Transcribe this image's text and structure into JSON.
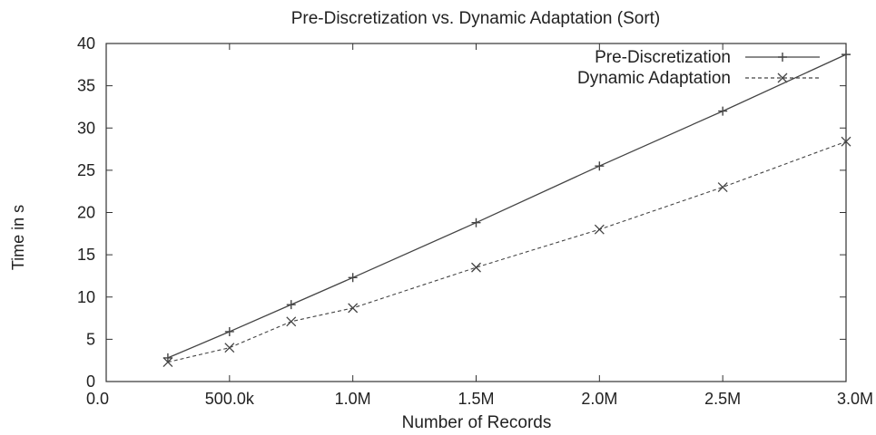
{
  "chart_data": {
    "type": "line",
    "title": "Pre-Discretization vs. Dynamic Adaptation (Sort)",
    "xlabel": "Number of Records",
    "ylabel": "Time in s",
    "xlim": [
      0,
      3000000
    ],
    "ylim": [
      0,
      40
    ],
    "x_ticks": [
      {
        "value": 0,
        "label": "0.0"
      },
      {
        "value": 500000,
        "label": "500.0k"
      },
      {
        "value": 1000000,
        "label": "1.0M"
      },
      {
        "value": 1500000,
        "label": "1.5M"
      },
      {
        "value": 2000000,
        "label": "2.0M"
      },
      {
        "value": 2500000,
        "label": "2.5M"
      },
      {
        "value": 3000000,
        "label": "3.0M"
      }
    ],
    "y_ticks": [
      {
        "value": 0,
        "label": "0"
      },
      {
        "value": 5,
        "label": "5"
      },
      {
        "value": 10,
        "label": "10"
      },
      {
        "value": 15,
        "label": "15"
      },
      {
        "value": 20,
        "label": "20"
      },
      {
        "value": 25,
        "label": "25"
      },
      {
        "value": 30,
        "label": "30"
      },
      {
        "value": 35,
        "label": "35"
      },
      {
        "value": 40,
        "label": "40"
      }
    ],
    "grid": false,
    "legend_position": "top-right",
    "series": [
      {
        "name": "Pre-Discretization",
        "line_style": "solid",
        "marker": "plus",
        "color": "#444444",
        "points": [
          {
            "x": 250000,
            "y": 2.8
          },
          {
            "x": 500000,
            "y": 5.9
          },
          {
            "x": 750000,
            "y": 9.1
          },
          {
            "x": 1000000,
            "y": 12.3
          },
          {
            "x": 1500000,
            "y": 18.8
          },
          {
            "x": 2000000,
            "y": 25.5
          },
          {
            "x": 2500000,
            "y": 32.0
          },
          {
            "x": 3000000,
            "y": 38.7
          }
        ]
      },
      {
        "name": "Dynamic Adaptation",
        "line_style": "dashed",
        "marker": "cross",
        "color": "#444444",
        "points": [
          {
            "x": 250000,
            "y": 2.3
          },
          {
            "x": 500000,
            "y": 4.0
          },
          {
            "x": 750000,
            "y": 7.1
          },
          {
            "x": 1000000,
            "y": 8.7
          },
          {
            "x": 1500000,
            "y": 13.5
          },
          {
            "x": 2000000,
            "y": 18.0
          },
          {
            "x": 2500000,
            "y": 23.0
          },
          {
            "x": 3000000,
            "y": 28.4
          }
        ]
      }
    ]
  }
}
